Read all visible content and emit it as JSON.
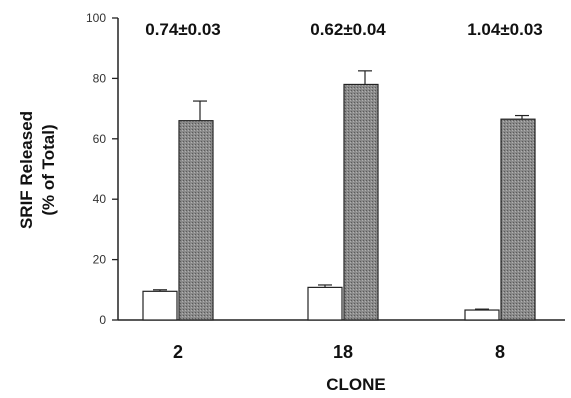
{
  "chart_data": {
    "type": "bar",
    "categories": [
      "2",
      "18",
      "8"
    ],
    "series": [
      {
        "color": "#ffffff",
        "values": [
          9.5,
          10.8,
          3.3
        ],
        "errors": [
          0.5,
          0.8,
          0.3
        ]
      },
      {
        "color": "#8c8c8c",
        "values": [
          66,
          78,
          66.5
        ],
        "errors": [
          6.5,
          4.5,
          1.2
        ]
      }
    ],
    "annotations": [
      "0.74±0.03",
      "0.62±0.04",
      "1.04±0.03"
    ],
    "xlabel": "CLONE",
    "ylabel_line1": "SRIF  Released",
    "ylabel_line2": "(% of Total)",
    "ylim": [
      0,
      100
    ],
    "yticks": [
      "0",
      "20",
      "40",
      "60",
      "80",
      "100"
    ],
    "grid": false
  }
}
